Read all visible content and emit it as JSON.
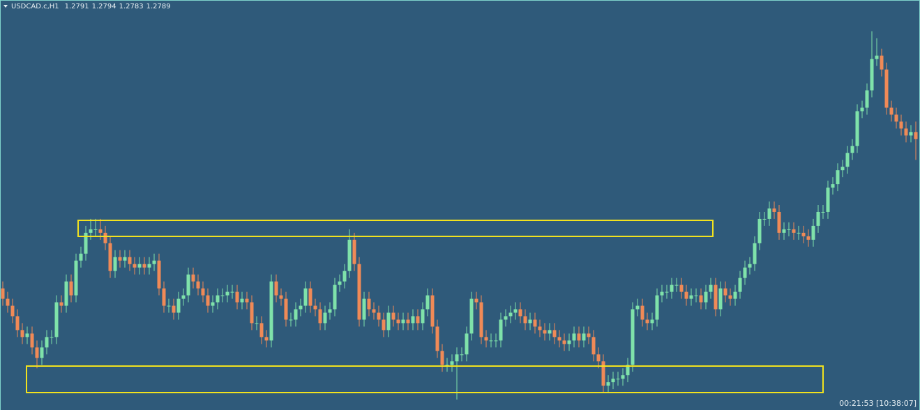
{
  "chart_data": {
    "type": "candlestick",
    "title": "USDCAD.c,H1",
    "ohlc_header": [
      1.2791,
      1.2794,
      1.2783,
      1.2789
    ],
    "countdown": "00:21:53 [10:38:07]",
    "up_color": "#7fe2aa",
    "down_color": "#f08a57",
    "ylim": [
      1.2711,
      1.2829
    ],
    "open": [
      1.2746,
      1.2743,
      1.2741,
      1.2738,
      1.2734,
      1.2732,
      1.2733,
      1.2729,
      1.2726,
      1.2729,
      1.2732,
      1.2732,
      1.2742,
      1.2741,
      1.2748,
      1.2744,
      1.2754,
      1.2756,
      1.2762,
      1.2763,
      1.2763,
      1.2762,
      1.2759,
      1.2751,
      1.2755,
      1.2754,
      1.2755,
      1.2753,
      1.2752,
      1.2753,
      1.2752,
      1.2753,
      1.2754,
      1.2746,
      1.2741,
      1.2741,
      1.2739,
      1.2743,
      1.2744,
      1.275,
      1.2748,
      1.2746,
      1.2744,
      1.2741,
      1.2742,
      1.2744,
      1.2744,
      1.2745,
      1.2745,
      1.2742,
      1.2743,
      1.2742,
      1.2736,
      1.2736,
      1.2732,
      1.2731,
      1.2748,
      1.2744,
      1.2743,
      1.2737,
      1.2737,
      1.274,
      1.2741,
      1.2746,
      1.2741,
      1.274,
      1.2736,
      1.2739,
      1.274,
      1.2747,
      1.2748,
      1.2751,
      1.276,
      1.2753,
      1.2737,
      1.2743,
      1.274,
      1.2739,
      1.2737,
      1.2734,
      1.2739,
      1.2737,
      1.2736,
      1.2737,
      1.2736,
      1.2738,
      1.2736,
      1.274,
      1.2744,
      1.2735,
      1.2728,
      1.2724,
      1.2724,
      1.2725,
      1.2727,
      1.2727,
      1.2733,
      1.2743,
      1.2742,
      1.2732,
      1.2731,
      1.2731,
      1.2731,
      1.2737,
      1.2738,
      1.2739,
      1.274,
      1.2738,
      1.2736,
      1.2737,
      1.2735,
      1.2734,
      1.2733,
      1.2734,
      1.2732,
      1.2731,
      1.273,
      1.2731,
      1.2733,
      1.2731,
      1.2733,
      1.2732,
      1.2727,
      1.2725,
      1.2718,
      1.2719,
      1.272,
      1.272,
      1.2721,
      1.2724,
      1.274,
      1.2741,
      1.2737,
      1.2736,
      1.2737,
      1.2744,
      1.2745,
      1.2745,
      1.2747,
      1.2747,
      1.2745,
      1.2743,
      1.2744,
      1.2744,
      1.2742,
      1.2745,
      1.2747,
      1.274,
      1.2746,
      1.2744,
      1.2743,
      1.2745,
      1.2749,
      1.2752,
      1.2753,
      1.2759,
      1.2766,
      1.2766,
      1.2769,
      1.2768,
      1.2762,
      1.2763,
      1.2763,
      1.2762,
      1.2762,
      1.2761,
      1.276,
      1.2764,
      1.2768,
      1.2768,
      1.2775,
      1.2776,
      1.278,
      1.2781,
      1.2785,
      1.2787,
      1.2797,
      1.2798,
      1.2803,
      1.2812,
      1.2813,
      1.2809,
      1.2798,
      1.2796,
      1.2794,
      1.2792,
      1.279,
      1.2791
    ],
    "high": [
      1.2748,
      1.2745,
      1.2743,
      1.274,
      1.2736,
      1.2735,
      1.2735,
      1.2731,
      1.2731,
      1.2734,
      1.2734,
      1.2744,
      1.2744,
      1.275,
      1.275,
      1.2756,
      1.2758,
      1.2764,
      1.2766,
      1.2766,
      1.2766,
      1.2764,
      1.2761,
      1.2757,
      1.2757,
      1.2757,
      1.2757,
      1.2755,
      1.2755,
      1.2755,
      1.2755,
      1.2756,
      1.2756,
      1.2748,
      1.2743,
      1.2743,
      1.2745,
      1.2746,
      1.2752,
      1.2752,
      1.275,
      1.2748,
      1.2746,
      1.2744,
      1.2746,
      1.2746,
      1.2747,
      1.2747,
      1.2747,
      1.2745,
      1.2745,
      1.2744,
      1.2738,
      1.2738,
      1.2734,
      1.275,
      1.275,
      1.2746,
      1.2745,
      1.2739,
      1.2742,
      1.2743,
      1.2748,
      1.2748,
      1.2743,
      1.2742,
      1.2741,
      1.2742,
      1.2749,
      1.275,
      1.2753,
      1.2763,
      1.2762,
      1.2755,
      1.2745,
      1.2745,
      1.2742,
      1.2741,
      1.2739,
      1.2741,
      1.2741,
      1.2739,
      1.2739,
      1.2739,
      1.274,
      1.274,
      1.2742,
      1.2746,
      1.2746,
      1.2737,
      1.273,
      1.2726,
      1.2727,
      1.2729,
      1.2729,
      1.2735,
      1.2745,
      1.2745,
      1.2744,
      1.2734,
      1.2733,
      1.2733,
      1.2739,
      1.274,
      1.2741,
      1.2742,
      1.2742,
      1.274,
      1.2739,
      1.2739,
      1.2737,
      1.2736,
      1.2736,
      1.2736,
      1.2734,
      1.2733,
      1.2733,
      1.2735,
      1.2735,
      1.2735,
      1.2735,
      1.2734,
      1.2729,
      1.2727,
      1.2721,
      1.2722,
      1.2722,
      1.2723,
      1.2726,
      1.2742,
      1.2743,
      1.2743,
      1.2739,
      1.2739,
      1.2746,
      1.2747,
      1.2747,
      1.2749,
      1.2749,
      1.2749,
      1.2747,
      1.2746,
      1.2746,
      1.2746,
      1.2747,
      1.2749,
      1.2749,
      1.2748,
      1.2748,
      1.2746,
      1.2747,
      1.2751,
      1.2754,
      1.2755,
      1.2761,
      1.2768,
      1.2768,
      1.2771,
      1.2771,
      1.277,
      1.2765,
      1.2765,
      1.2765,
      1.2764,
      1.2764,
      1.2763,
      1.2766,
      1.277,
      1.277,
      1.2777,
      1.2778,
      1.2782,
      1.2783,
      1.2787,
      1.2789,
      1.2799,
      1.28,
      1.2805,
      1.282,
      1.2818,
      1.2815,
      1.2811,
      1.28,
      1.2798,
      1.2796,
      1.2794,
      1.2793,
      1.2794
    ],
    "low": [
      1.2741,
      1.2739,
      1.2736,
      1.2732,
      1.273,
      1.273,
      1.2727,
      1.2723,
      1.2724,
      1.2727,
      1.273,
      1.273,
      1.2739,
      1.2739,
      1.2742,
      1.2742,
      1.2752,
      1.2754,
      1.276,
      1.2761,
      1.276,
      1.2757,
      1.2749,
      1.2749,
      1.2752,
      1.2752,
      1.2751,
      1.275,
      1.275,
      1.275,
      1.275,
      1.2751,
      1.2744,
      1.2739,
      1.2739,
      1.2737,
      1.2737,
      1.2741,
      1.2742,
      1.2746,
      1.2744,
      1.2742,
      1.2739,
      1.2739,
      1.274,
      1.2742,
      1.2742,
      1.2743,
      1.274,
      1.274,
      1.274,
      1.2734,
      1.2734,
      1.273,
      1.2729,
      1.2729,
      1.2742,
      1.2741,
      1.2735,
      1.2735,
      1.2735,
      1.2738,
      1.2739,
      1.2739,
      1.2738,
      1.2734,
      1.2734,
      1.2737,
      1.2738,
      1.2745,
      1.2746,
      1.2749,
      1.2751,
      1.2735,
      1.2735,
      1.2738,
      1.2737,
      1.2735,
      1.2732,
      1.2732,
      1.2735,
      1.2734,
      1.2734,
      1.2734,
      1.2734,
      1.2734,
      1.2734,
      1.2738,
      1.2733,
      1.2726,
      1.2722,
      1.2722,
      1.2722,
      1.2714,
      1.2725,
      1.2725,
      1.2731,
      1.274,
      1.273,
      1.2729,
      1.2729,
      1.2729,
      1.2729,
      1.2735,
      1.2736,
      1.2737,
      1.2736,
      1.2734,
      1.2734,
      1.2733,
      1.2732,
      1.2731,
      1.2731,
      1.273,
      1.2729,
      1.2728,
      1.2728,
      1.2729,
      1.2729,
      1.2729,
      1.273,
      1.2725,
      1.2723,
      1.2716,
      1.2716,
      1.2717,
      1.2718,
      1.2718,
      1.2719,
      1.2722,
      1.2738,
      1.2735,
      1.2734,
      1.2734,
      1.2735,
      1.2742,
      1.2743,
      1.2743,
      1.2745,
      1.2743,
      1.2741,
      1.2741,
      1.2742,
      1.274,
      1.274,
      1.2743,
      1.2738,
      1.2738,
      1.2742,
      1.2741,
      1.2741,
      1.2743,
      1.2747,
      1.275,
      1.2751,
      1.2757,
      1.2764,
      1.2764,
      1.2766,
      1.276,
      1.276,
      1.2761,
      1.276,
      1.276,
      1.2759,
      1.2758,
      1.2758,
      1.2762,
      1.2766,
      1.2766,
      1.2773,
      1.2774,
      1.2778,
      1.2779,
      1.2783,
      1.2785,
      1.2795,
      1.2796,
      1.2801,
      1.281,
      1.2807,
      1.2796,
      1.2794,
      1.2792,
      1.279,
      1.2788,
      1.2788,
      1.2783
    ],
    "close": [
      1.2743,
      1.2741,
      1.2738,
      1.2734,
      1.2732,
      1.2733,
      1.2729,
      1.2726,
      1.2729,
      1.2732,
      1.2732,
      1.2742,
      1.2741,
      1.2748,
      1.2744,
      1.2754,
      1.2756,
      1.2762,
      1.2763,
      1.2763,
      1.2762,
      1.2759,
      1.2751,
      1.2755,
      1.2754,
      1.2755,
      1.2753,
      1.2752,
      1.2753,
      1.2752,
      1.2753,
      1.2754,
      1.2746,
      1.2741,
      1.2741,
      1.2739,
      1.2743,
      1.2744,
      1.275,
      1.2748,
      1.2746,
      1.2744,
      1.2741,
      1.2742,
      1.2744,
      1.2744,
      1.2745,
      1.2745,
      1.2742,
      1.2743,
      1.2742,
      1.2736,
      1.2736,
      1.2732,
      1.2731,
      1.2748,
      1.2744,
      1.2743,
      1.2737,
      1.2737,
      1.274,
      1.2741,
      1.2746,
      1.2741,
      1.274,
      1.2736,
      1.2739,
      1.274,
      1.2747,
      1.2748,
      1.2751,
      1.276,
      1.2753,
      1.2737,
      1.2743,
      1.274,
      1.2739,
      1.2737,
      1.2734,
      1.2739,
      1.2737,
      1.2736,
      1.2737,
      1.2736,
      1.2738,
      1.2736,
      1.274,
      1.2744,
      1.2735,
      1.2728,
      1.2724,
      1.2724,
      1.2725,
      1.2727,
      1.2727,
      1.2733,
      1.2743,
      1.2742,
      1.2732,
      1.2731,
      1.2731,
      1.2731,
      1.2737,
      1.2738,
      1.2739,
      1.274,
      1.2738,
      1.2736,
      1.2737,
      1.2735,
      1.2734,
      1.2733,
      1.2734,
      1.2732,
      1.2731,
      1.273,
      1.2731,
      1.2733,
      1.2731,
      1.2733,
      1.2732,
      1.2727,
      1.2725,
      1.2718,
      1.2719,
      1.272,
      1.272,
      1.2721,
      1.2724,
      1.274,
      1.2741,
      1.2737,
      1.2736,
      1.2737,
      1.2744,
      1.2745,
      1.2745,
      1.2747,
      1.2747,
      1.2745,
      1.2743,
      1.2744,
      1.2744,
      1.2742,
      1.2745,
      1.2747,
      1.274,
      1.2746,
      1.2744,
      1.2743,
      1.2745,
      1.2749,
      1.2752,
      1.2753,
      1.2759,
      1.2766,
      1.2766,
      1.2769,
      1.2768,
      1.2762,
      1.2763,
      1.2763,
      1.2762,
      1.2762,
      1.2761,
      1.276,
      1.2764,
      1.2768,
      1.2768,
      1.2775,
      1.2776,
      1.278,
      1.2781,
      1.2785,
      1.2787,
      1.2797,
      1.2798,
      1.2803,
      1.2812,
      1.2813,
      1.2809,
      1.2798,
      1.2796,
      1.2794,
      1.2792,
      1.279,
      1.2791,
      1.2789
    ]
  }
}
